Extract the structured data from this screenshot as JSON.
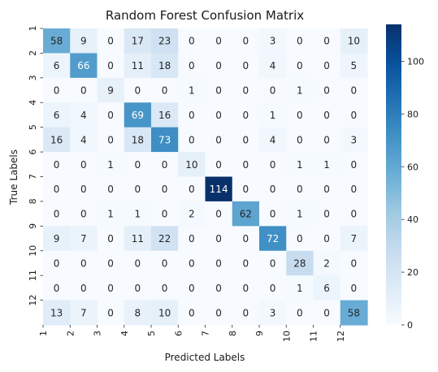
{
  "chart_data": {
    "type": "heatmap",
    "title": "Random Forest Confusion Matrix",
    "xlabel": "Predicted Labels",
    "ylabel": "True Labels",
    "x_tick_labels": [
      "1",
      "2",
      "3",
      "4",
      "5",
      "6",
      "7",
      "8",
      "9",
      "10",
      "11",
      "12"
    ],
    "y_tick_labels": [
      "1",
      "2",
      "3",
      "4",
      "5",
      "6",
      "7",
      "8",
      "9",
      "10",
      "11",
      "12"
    ],
    "matrix": [
      [
        58,
        9,
        0,
        17,
        23,
        0,
        0,
        0,
        3,
        0,
        0,
        10
      ],
      [
        6,
        66,
        0,
        11,
        18,
        0,
        0,
        0,
        4,
        0,
        0,
        5
      ],
      [
        0,
        0,
        9,
        0,
        0,
        1,
        0,
        0,
        0,
        1,
        0,
        0
      ],
      [
        6,
        4,
        0,
        69,
        16,
        0,
        0,
        0,
        1,
        0,
        0,
        0
      ],
      [
        16,
        4,
        0,
        18,
        73,
        0,
        0,
        0,
        4,
        0,
        0,
        3
      ],
      [
        0,
        0,
        1,
        0,
        0,
        10,
        0,
        0,
        0,
        1,
        1,
        0
      ],
      [
        0,
        0,
        0,
        0,
        0,
        0,
        114,
        0,
        0,
        0,
        0,
        0
      ],
      [
        0,
        0,
        1,
        1,
        0,
        2,
        0,
        62,
        0,
        1,
        0,
        0
      ],
      [
        9,
        7,
        0,
        11,
        22,
        0,
        0,
        0,
        72,
        0,
        0,
        7
      ],
      [
        0,
        0,
        0,
        0,
        0,
        0,
        0,
        0,
        0,
        28,
        2,
        0
      ],
      [
        0,
        0,
        0,
        0,
        0,
        0,
        0,
        0,
        0,
        1,
        6,
        0
      ],
      [
        13,
        7,
        0,
        8,
        10,
        0,
        0,
        0,
        3,
        0,
        0,
        58
      ]
    ],
    "value_range": [
      0,
      114
    ],
    "colormap": "Blues",
    "colorbar_ticks": [
      0,
      20,
      40,
      60,
      80,
      100
    ],
    "annotated": true
  }
}
